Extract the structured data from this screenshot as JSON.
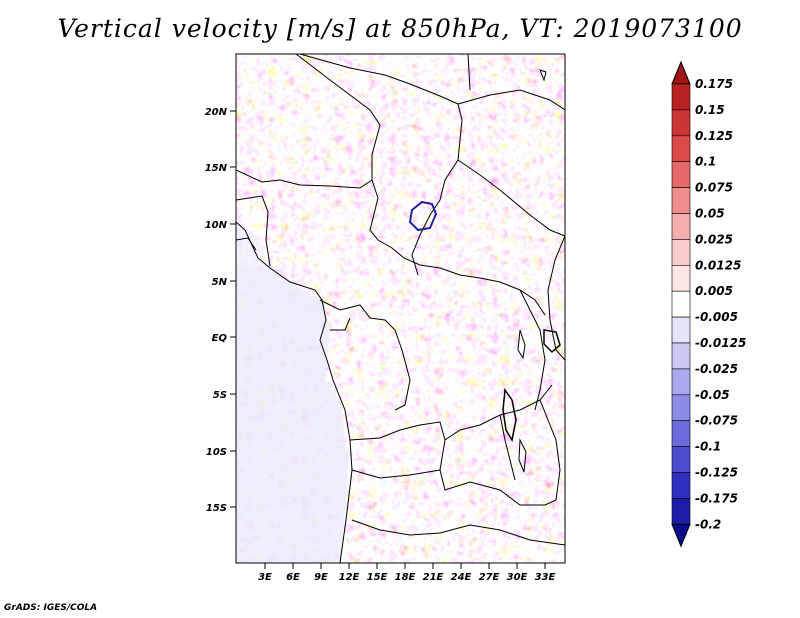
{
  "title": "Vertical velocity [m/s] at 850hPa, VT: 2019073100",
  "credit": "GrADS: IGES/COLA",
  "map": {
    "lat_labels": [
      "20N",
      "15N",
      "10N",
      "5N",
      "EQ",
      "5S",
      "10S",
      "15S"
    ],
    "lon_labels": [
      "3E",
      "6E",
      "9E",
      "12E",
      "15E",
      "18E",
      "21E",
      "24E",
      "27E",
      "30E",
      "33E"
    ],
    "extent": {
      "lon_min": 0.7,
      "lon_max": 34.5,
      "lat_min": -20.0,
      "lat_max": 24.5
    }
  },
  "colorbar": {
    "levels": [
      "0.175",
      "0.15",
      "0.125",
      "0.1",
      "0.075",
      "0.05",
      "0.025",
      "0.0125",
      "0.005",
      "-0.005",
      "-0.0125",
      "-0.025",
      "-0.05",
      "-0.075",
      "-0.1",
      "-0.125",
      "-0.175",
      "-0.2"
    ],
    "colors": [
      "#a01515",
      "#b82222",
      "#cd3434",
      "#dd4a4a",
      "#e66a6a",
      "#ef8c8c",
      "#f5aeae",
      "#f9cccc",
      "#fce6e6",
      "#ffffff",
      "#e4e4fa",
      "#c9c9f4",
      "#aaaaee",
      "#8c8ce6",
      "#6b6bdc",
      "#4d4dd0",
      "#3030c0",
      "#1c1ca8",
      "#0c0c8c"
    ]
  }
}
